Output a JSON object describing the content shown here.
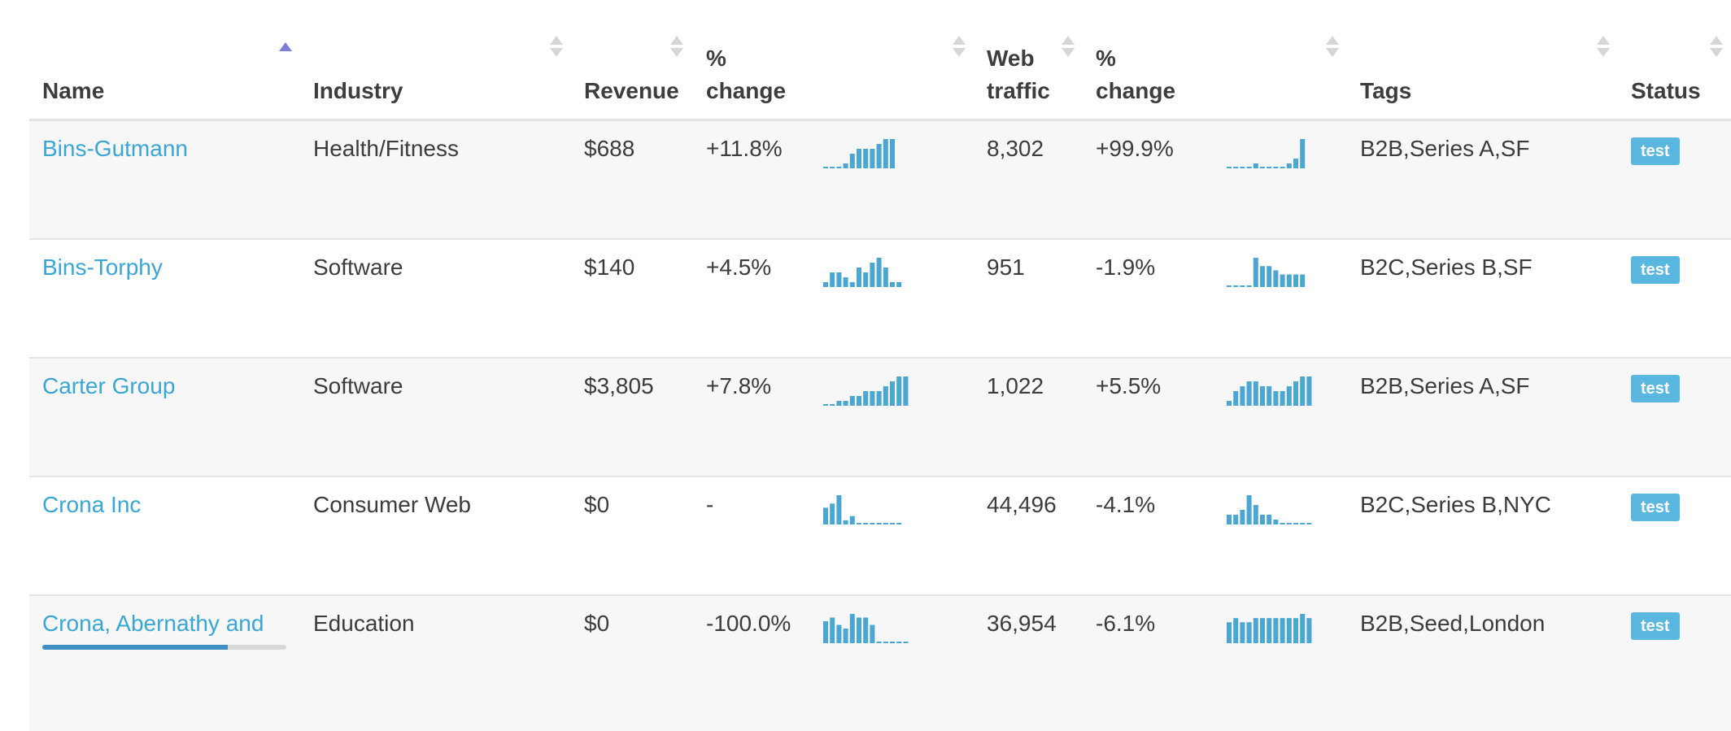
{
  "columns": {
    "name": "Name",
    "industry": "Industry",
    "revenue": "Revenue",
    "rev_change": "% change",
    "web_traffic": "Web traffic",
    "traffic_change": "% change",
    "tags": "Tags",
    "status": "Status"
  },
  "sort": {
    "column": "name",
    "direction": "asc"
  },
  "colors": {
    "link": "#3aa6d6",
    "spark": "#4ba6d1",
    "badge": "#5ab8e0",
    "sort_active": "#7d7ddc"
  },
  "rows": [
    {
      "name": "Bins-Gutmann",
      "industry": "Health/Fitness",
      "revenue": "$688",
      "rev_change": "+11.8%",
      "rev_spark": [
        0,
        0,
        0,
        1,
        3,
        4,
        4,
        4,
        5,
        6,
        6
      ],
      "web_traffic": "8,302",
      "traffic_change": "+99.9%",
      "traffic_spark": [
        0,
        0,
        0,
        0,
        1,
        0,
        0,
        0,
        0,
        1,
        2,
        6
      ],
      "tags": "B2B,Series A,SF",
      "status": "test"
    },
    {
      "name": "Bins-Torphy",
      "industry": "Software",
      "revenue": "$140",
      "rev_change": "+4.5%",
      "rev_spark": [
        1,
        3,
        3,
        2,
        1,
        4,
        3,
        5,
        6,
        4,
        1,
        1
      ],
      "web_traffic": "951",
      "traffic_change": "-1.9%",
      "traffic_spark": [
        0,
        0,
        0,
        0,
        7,
        5,
        5,
        4,
        3,
        3,
        3,
        3
      ],
      "tags": "B2C,Series B,SF",
      "status": "test"
    },
    {
      "name": "Carter Group",
      "industry": "Software",
      "revenue": "$3,805",
      "rev_change": "+7.8%",
      "rev_spark": [
        0,
        0,
        1,
        1,
        2,
        2,
        3,
        3,
        3,
        4,
        5,
        6,
        6
      ],
      "web_traffic": "1,022",
      "traffic_change": "+5.5%",
      "traffic_spark": [
        1,
        3,
        4,
        5,
        5,
        4,
        4,
        3,
        3,
        4,
        5,
        6,
        6
      ],
      "tags": "B2B,Series A,SF",
      "status": "test"
    },
    {
      "name": "Crona Inc",
      "industry": "Consumer Web",
      "revenue": "$0",
      "rev_change": "-",
      "rev_spark": [
        4,
        5,
        7,
        1,
        2,
        0,
        0,
        0,
        0,
        0,
        0,
        0
      ],
      "web_traffic": "44,496",
      "traffic_change": "-4.1%",
      "traffic_spark": [
        2,
        2,
        3,
        6,
        4,
        2,
        2,
        1,
        0,
        0,
        0,
        0,
        0
      ],
      "tags": "B2C,Series B,NYC",
      "status": "test"
    },
    {
      "name": "Crona, Abernathy and",
      "industry": "Education",
      "revenue": "$0",
      "rev_change": "-100.0%",
      "rev_spark": [
        6,
        7,
        5,
        4,
        8,
        7,
        7,
        5,
        0,
        0,
        0,
        0,
        0
      ],
      "web_traffic": "36,954",
      "traffic_change": "-6.1%",
      "traffic_spark": [
        5,
        6,
        5,
        5,
        6,
        6,
        6,
        6,
        6,
        6,
        6,
        7,
        6
      ],
      "tags": "B2B,Seed,London",
      "status": "test",
      "progress": 0.76
    }
  ]
}
